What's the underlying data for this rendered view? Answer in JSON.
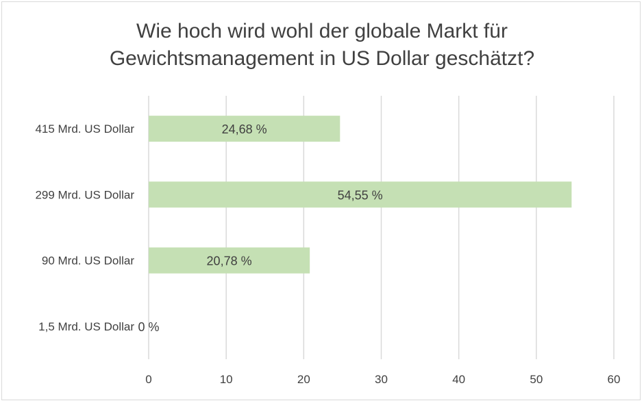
{
  "chart_data": {
    "type": "bar",
    "orientation": "horizontal",
    "title_lines": [
      "Wie hoch wird wohl der globale Markt für",
      "Gewichtsmanagement in US Dollar geschätzt?"
    ],
    "categories": [
      "415 Mrd. US Dollar",
      "299 Mrd. US Dollar",
      "90 Mrd. US Dollar",
      "1,5 Mrd. US Dollar"
    ],
    "values": [
      24.68,
      54.55,
      20.78,
      0
    ],
    "data_labels": [
      "24,68 %",
      "54,55 %",
      "20,78 %",
      "0 %"
    ],
    "xlim": [
      0,
      60
    ],
    "xticks": [
      0,
      10,
      20,
      30,
      40,
      50,
      60
    ],
    "xlabel": "",
    "ylabel": "",
    "grid": "vertical",
    "legend": "none",
    "colors": {
      "bar": "#c5e0b4",
      "grid": "#d9d9d9",
      "text": "#404040"
    }
  }
}
